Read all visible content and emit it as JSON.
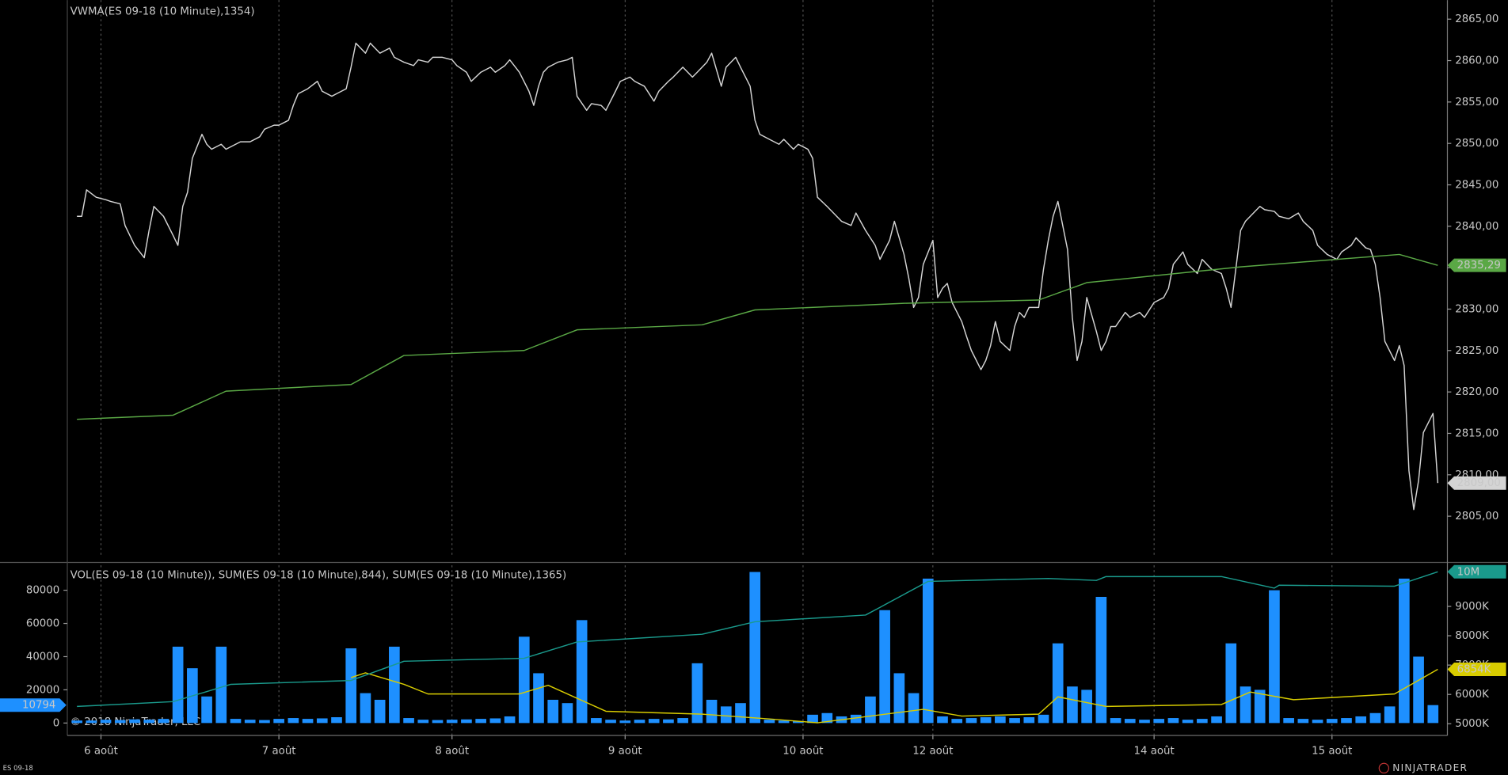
{
  "chart_data": [
    {
      "type": "line",
      "title": "VWMA(ES 09-18 (10 Minute),1354)",
      "xlim": [
        0,
        287
      ],
      "ylim": [
        2800,
        2867.3
      ],
      "yticks": [
        {
          "value": 2805,
          "label": "2805,00"
        },
        {
          "value": 2810,
          "label": "2810,00"
        },
        {
          "value": 2815,
          "label": "2815,00"
        },
        {
          "value": 2820,
          "label": "2820,00"
        },
        {
          "value": 2825,
          "label": "2825,00"
        },
        {
          "value": 2830,
          "label": "2830,00"
        },
        {
          "value": 2835,
          "label": "2835,00"
        },
        {
          "value": 2840,
          "label": "2840,00"
        },
        {
          "value": 2845,
          "label": "2845,00"
        },
        {
          "value": 2850,
          "label": "2850,00"
        },
        {
          "value": 2855,
          "label": "2855,00"
        },
        {
          "value": 2860,
          "label": "2860,00"
        },
        {
          "value": 2865,
          "label": "2865,00"
        }
      ],
      "grid": true,
      "series": [
        {
          "color": "#d4d4d4",
          "last_label": "2809,00",
          "x": [
            2,
            3,
            4,
            6,
            8,
            9,
            11,
            12,
            14,
            16,
            17,
            18,
            20,
            22,
            23,
            24,
            25,
            26,
            28,
            29,
            30,
            32,
            33,
            35,
            36,
            38,
            40,
            41,
            43,
            44,
            46,
            47,
            48,
            50,
            52,
            53,
            55,
            56,
            58,
            59,
            60,
            62,
            63,
            64,
            65,
            67,
            68,
            70,
            72,
            73,
            75,
            76,
            78,
            80,
            81,
            83,
            84,
            86,
            88,
            89,
            91,
            92,
            94,
            96,
            97,
            98,
            99,
            100,
            102,
            104,
            105,
            106,
            108,
            109,
            111,
            112,
            114,
            115,
            117,
            118,
            120,
            122,
            123,
            125,
            126,
            128,
            130,
            131,
            133,
            134,
            136,
            137,
            139,
            140,
            142,
            143,
            144,
            146,
            148,
            149,
            151,
            152,
            154,
            155,
            156,
            158,
            160,
            161,
            163,
            164,
            166,
            168,
            169,
            171,
            172,
            174,
            175,
            176,
            177,
            178,
            180,
            181,
            182,
            183,
            184,
            186,
            187,
            188,
            190,
            191,
            192,
            193,
            194,
            196,
            197,
            198,
            199,
            200,
            202,
            203,
            204,
            205,
            206,
            208,
            209,
            210,
            211,
            212,
            214,
            215,
            216,
            217,
            218,
            220,
            221,
            223,
            224,
            226,
            228,
            229,
            230,
            232,
            233,
            235,
            236,
            238,
            240,
            241,
            242,
            244,
            245,
            246,
            248,
            249,
            251,
            252,
            254,
            256,
            257,
            259,
            260,
            262,
            264,
            265,
            267,
            268,
            270,
            271,
            272,
            273,
            274,
            276,
            277,
            278,
            279,
            280,
            281,
            282,
            284,
            285
          ],
          "values": [
            2841.2,
            2841.2,
            2844.4,
            2843.5,
            2843.2,
            2843.0,
            2842.7,
            2840.1,
            2837.7,
            2836.2,
            2839.5,
            2842.4,
            2841.2,
            2838.9,
            2837.7,
            2842.4,
            2844.1,
            2848.2,
            2851.1,
            2849.9,
            2849.3,
            2849.9,
            2849.3,
            2849.9,
            2850.2,
            2850.2,
            2850.8,
            2851.7,
            2852.2,
            2852.2,
            2852.8,
            2854.6,
            2856.0,
            2856.6,
            2857.5,
            2856.3,
            2855.7,
            2856.0,
            2856.6,
            2859.2,
            2862.1,
            2860.9,
            2862.1,
            2861.5,
            2860.9,
            2861.5,
            2860.4,
            2859.8,
            2859.4,
            2860.1,
            2859.8,
            2860.4,
            2860.4,
            2860.1,
            2859.4,
            2858.6,
            2857.5,
            2858.6,
            2859.2,
            2858.6,
            2859.4,
            2860.1,
            2858.6,
            2856.3,
            2854.6,
            2856.9,
            2858.6,
            2859.2,
            2859.8,
            2860.1,
            2860.4,
            2855.7,
            2854.0,
            2854.8,
            2854.6,
            2854.0,
            2856.3,
            2857.5,
            2858.0,
            2857.5,
            2856.9,
            2855.1,
            2856.3,
            2857.5,
            2858.0,
            2859.2,
            2858.0,
            2858.6,
            2859.8,
            2860.9,
            2856.9,
            2859.2,
            2860.4,
            2859.2,
            2856.9,
            2852.8,
            2851.1,
            2850.5,
            2849.9,
            2850.5,
            2849.3,
            2849.9,
            2849.3,
            2848.2,
            2843.5,
            2842.4,
            2841.2,
            2840.6,
            2840.1,
            2841.6,
            2839.5,
            2837.7,
            2836.0,
            2838.3,
            2840.6,
            2836.6,
            2833.7,
            2830.2,
            2831.4,
            2835.4,
            2838.3,
            2831.4,
            2832.5,
            2833.1,
            2830.8,
            2828.5,
            2826.7,
            2825.0,
            2822.7,
            2823.8,
            2825.6,
            2828.5,
            2826.1,
            2825.0,
            2827.9,
            2829.6,
            2829.0,
            2830.2,
            2830.2,
            2834.8,
            2838.3,
            2841.2,
            2843.0,
            2837.2,
            2829.0,
            2823.8,
            2826.1,
            2831.4,
            2827.3,
            2825.0,
            2826.1,
            2827.9,
            2827.9,
            2829.6,
            2829.0,
            2829.6,
            2829.0,
            2830.8,
            2831.4,
            2832.5,
            2835.4,
            2836.9,
            2835.4,
            2834.3,
            2836.0,
            2834.8,
            2834.3,
            2832.5,
            2830.2,
            2839.5,
            2840.6,
            2841.2,
            2842.4,
            2842.0,
            2841.8,
            2841.2,
            2840.9,
            2841.6,
            2840.6,
            2839.5,
            2837.7,
            2836.6,
            2836.0,
            2836.9,
            2837.7,
            2838.6,
            2837.4,
            2837.2,
            2835.4,
            2831.4,
            2826.1,
            2823.8,
            2825.6,
            2823.2,
            2810.5,
            2805.8,
            2809.3,
            2815.1,
            2817.4,
            2809.0
          ]
        },
        {
          "color": "#5aa845",
          "last_label": "2835,29",
          "x": [
            2,
            22,
            33,
            59,
            70,
            95,
            106,
            132,
            143,
            174,
            202,
            212,
            244,
            277,
            285
          ],
          "values": [
            2816.7,
            2817.2,
            2820.1,
            2820.9,
            2824.4,
            2825.0,
            2827.5,
            2828.1,
            2829.9,
            2830.7,
            2831.1,
            2833.2,
            2835.1,
            2836.6,
            2835.29
          ]
        }
      ]
    },
    {
      "type": "combo",
      "title": "VOL(ES 09-18 (10 Minute)), SUM(ES 09-18 (10 Minute),844), SUM(ES 09-18 (10 Minute),1365)",
      "xlim": [
        0,
        287
      ],
      "xticks": [
        {
          "value": 7,
          "label": "6 août"
        },
        {
          "value": 44,
          "label": "7 août"
        },
        {
          "value": 80,
          "label": "8 août"
        },
        {
          "value": 116,
          "label": "9 août"
        },
        {
          "value": 153,
          "label": "10 août"
        },
        {
          "value": 180,
          "label": "12 août"
        },
        {
          "value": 226,
          "label": "14 août"
        },
        {
          "value": 263,
          "label": "15 août"
        }
      ],
      "ylim": [
        -7500,
        95000
      ],
      "yticks": [
        0,
        20000,
        40000,
        60000,
        80000
      ],
      "y2lim": [
        4600000,
        10400000
      ],
      "y2ticks": [
        {
          "value": 5000000,
          "label": "5000K"
        },
        {
          "value": 6000000,
          "label": "6000K"
        },
        {
          "value": 7000000,
          "label": "7000K"
        },
        {
          "value": 8000000,
          "label": "8000K"
        },
        {
          "value": 9000000,
          "label": "9000K"
        }
      ],
      "grid": true,
      "series": [
        {
          "type": "bar",
          "color": "#1e90ff",
          "last_label": "10794",
          "x": [
            2,
            5,
            8,
            11,
            14,
            17,
            20,
            23,
            26,
            29,
            32,
            35,
            38,
            41,
            44,
            47,
            50,
            53,
            56,
            59,
            62,
            65,
            68,
            71,
            74,
            77,
            80,
            83,
            86,
            89,
            92,
            95,
            98,
            101,
            104,
            107,
            110,
            113,
            116,
            119,
            122,
            125,
            128,
            131,
            134,
            137,
            140,
            143,
            146,
            149,
            152,
            155,
            158,
            161,
            164,
            167,
            170,
            173,
            176,
            179,
            182,
            185,
            188,
            191,
            194,
            197,
            200,
            203,
            206,
            209,
            212,
            215,
            218,
            221,
            224,
            227,
            230,
            233,
            236,
            239,
            242,
            245,
            248,
            251,
            254,
            257,
            260,
            263,
            266,
            269,
            272,
            275,
            278,
            281,
            284
          ],
          "values": [
            1500,
            1500,
            2000,
            1800,
            2200,
            2000,
            2500,
            46000,
            33000,
            16000,
            46000,
            2500,
            2000,
            1800,
            2500,
            3000,
            2500,
            2800,
            3500,
            45000,
            18000,
            14000,
            46000,
            3000,
            2000,
            1800,
            2000,
            2200,
            2500,
            2800,
            4000,
            52000,
            30000,
            14000,
            12000,
            62000,
            3000,
            2000,
            1500,
            2000,
            2500,
            2200,
            3000,
            36000,
            14000,
            10000,
            12000,
            91000,
            2000,
            1500,
            1200,
            5000,
            6000,
            4000,
            5000,
            16000,
            68000,
            30000,
            18000,
            87000,
            4000,
            2500,
            3000,
            3500,
            4000,
            3000,
            3500,
            5000,
            48000,
            22000,
            20000,
            76000,
            3000,
            2500,
            2000,
            2500,
            3000,
            2000,
            2500,
            4000,
            48000,
            22000,
            20000,
            80000,
            3000,
            2500,
            2000,
            2500,
            3000,
            4000,
            6000,
            10000,
            87000,
            40000,
            10794
          ]
        },
        {
          "type": "line",
          "axis": "y2",
          "color": "#d8cc00",
          "last_label": "6854K",
          "x": [
            59,
            62,
            70,
            75,
            94,
            100,
            112,
            132,
            146,
            156,
            178,
            186,
            202,
            206,
            216,
            240,
            246,
            255,
            276,
            285
          ],
          "values": [
            6574000,
            6738000,
            6344000,
            6016000,
            6016000,
            6311000,
            5426000,
            5328000,
            5164000,
            5033000,
            5492000,
            5262000,
            5328000,
            5918000,
            5590000,
            5656000,
            6082000,
            5820000,
            6016000,
            6854000
          ]
        },
        {
          "type": "line",
          "axis": "y2",
          "color": "#1a9a8c",
          "last_label": "10M",
          "x": [
            2,
            22,
            34,
            59,
            70,
            95,
            106,
            132,
            143,
            166,
            169,
            179,
            204,
            214,
            216,
            240,
            251,
            252,
            276,
            285
          ],
          "values": [
            5590000,
            5754000,
            6344000,
            6475000,
            7131000,
            7230000,
            7787000,
            8049000,
            8475000,
            8705000,
            8967000,
            9852000,
            9951000,
            9885000,
            10016000,
            10016000,
            9623000,
            9721000,
            9689000,
            10180000
          ]
        }
      ]
    }
  ],
  "copyright": "© 2018 NinjaTrader, LLC",
  "instrument": "ES 09-18",
  "brand": "NINJATRADER"
}
